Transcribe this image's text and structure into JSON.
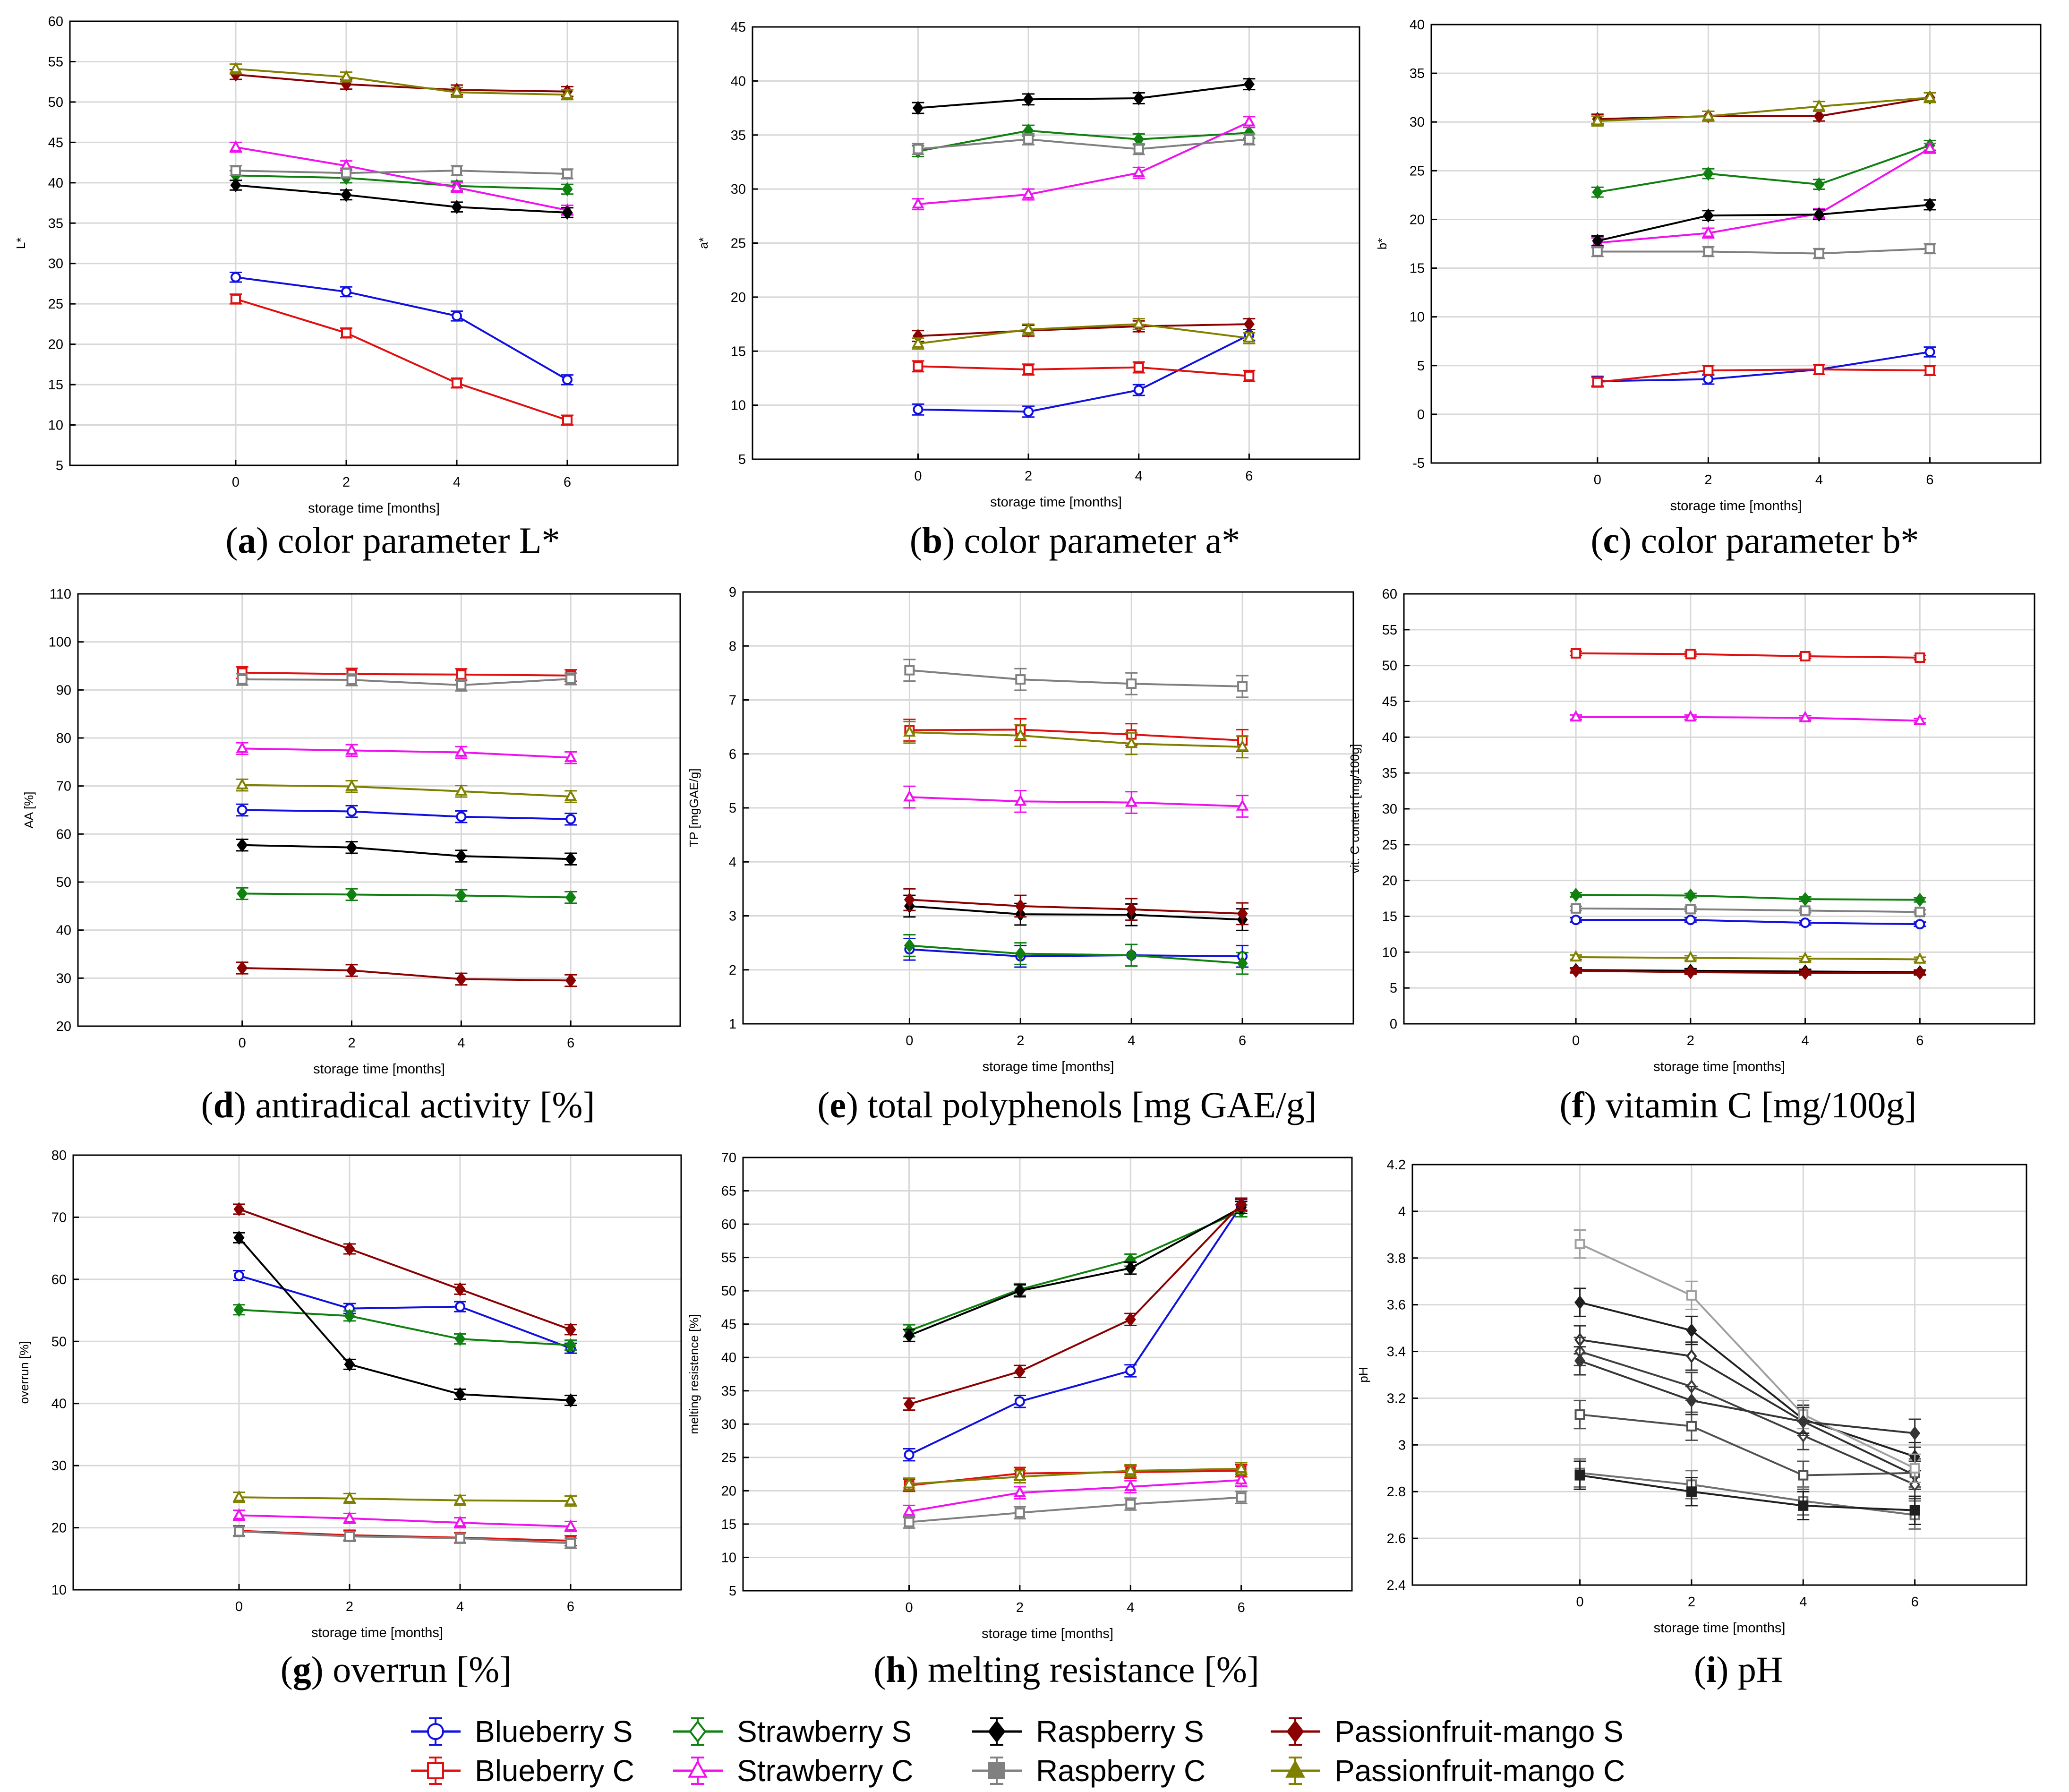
{
  "series_names": [
    "Blueberry S",
    "Blueberry C",
    "Strawberry S",
    "Strawberry C",
    "Raspberry S",
    "Raspberry C",
    "Passionfruit-mango S",
    "Passionfruit-mango C"
  ],
  "series_colors": [
    "#1010e0",
    "#e01010",
    "#108010",
    "#f010f0",
    "#000000",
    "#808080",
    "#8b0000",
    "#808000"
  ],
  "series_markers": [
    "circle",
    "square",
    "diamond",
    "triangle",
    "diamond",
    "square",
    "diamond",
    "triangle"
  ],
  "chart_data": [
    {
      "panel_id": "a",
      "type": "line",
      "caption_letter": "a",
      "caption_text": " color parameter L*",
      "xlabel": "storage time [months]",
      "ylabel": "L*",
      "x": [
        0,
        2,
        4,
        6
      ],
      "xlim": [
        -3,
        8
      ],
      "xticks": [
        0,
        2,
        4,
        6
      ],
      "ylim": [
        5,
        60
      ],
      "yticks": [
        5,
        10,
        15,
        20,
        25,
        30,
        35,
        40,
        45,
        50,
        55,
        60
      ],
      "series": [
        {
          "name": "Blueberry S",
          "values": [
            28.3,
            26.5,
            23.5,
            15.6
          ],
          "err": 0.6
        },
        {
          "name": "Blueberry C",
          "values": [
            25.6,
            21.4,
            15.2,
            10.6
          ],
          "err": 0.6
        },
        {
          "name": "Strawberry S",
          "values": [
            40.9,
            40.6,
            39.6,
            39.2
          ],
          "err": 0.6
        },
        {
          "name": "Strawberry C",
          "values": [
            44.4,
            42.1,
            39.4,
            36.6
          ],
          "err": 0.6
        },
        {
          "name": "Raspberry S",
          "values": [
            39.7,
            38.5,
            37.0,
            36.3
          ],
          "err": 0.6
        },
        {
          "name": "Raspberry C",
          "values": [
            41.5,
            41.2,
            41.5,
            41.1
          ],
          "err": 0.6
        },
        {
          "name": "Passionfruit-mango S",
          "values": [
            53.4,
            52.2,
            51.5,
            51.3
          ],
          "err": 0.6
        },
        {
          "name": "Passionfruit-mango C",
          "values": [
            54.1,
            53.1,
            51.2,
            50.9
          ],
          "err": 0.6
        }
      ]
    },
    {
      "panel_id": "b",
      "type": "line",
      "caption_letter": "b",
      "caption_text": " color parameter a*",
      "xlabel": "storage time [months]",
      "ylabel": "a*",
      "x": [
        0,
        2,
        4,
        6
      ],
      "xlim": [
        -3,
        8
      ],
      "xticks": [
        0,
        2,
        4,
        6
      ],
      "ylim": [
        5,
        45
      ],
      "yticks": [
        5,
        10,
        15,
        20,
        25,
        30,
        35,
        40,
        45
      ],
      "series": [
        {
          "name": "Blueberry S",
          "values": [
            9.6,
            9.4,
            11.4,
            16.5
          ],
          "err": 0.5
        },
        {
          "name": "Blueberry C",
          "values": [
            13.6,
            13.3,
            13.5,
            12.7
          ],
          "err": 0.5
        },
        {
          "name": "Strawberry S",
          "values": [
            33.5,
            35.4,
            34.6,
            35.2
          ],
          "err": 0.5
        },
        {
          "name": "Strawberry C",
          "values": [
            28.6,
            29.5,
            31.5,
            36.2
          ],
          "err": 0.5
        },
        {
          "name": "Raspberry S",
          "values": [
            37.5,
            38.3,
            38.4,
            39.7
          ],
          "err": 0.5
        },
        {
          "name": "Raspberry C",
          "values": [
            33.7,
            34.6,
            33.7,
            34.6
          ],
          "err": 0.5
        },
        {
          "name": "Passionfruit-mango S",
          "values": [
            16.4,
            16.9,
            17.3,
            17.5
          ],
          "err": 0.5
        },
        {
          "name": "Passionfruit-mango C",
          "values": [
            15.7,
            17.0,
            17.5,
            16.2
          ],
          "err": 0.5
        }
      ]
    },
    {
      "panel_id": "c",
      "type": "line",
      "caption_letter": "c",
      "caption_text": " color parameter b*",
      "xlabel": "storage time [months]",
      "ylabel": "b*",
      "x": [
        0,
        2,
        4,
        6
      ],
      "xlim": [
        -3,
        8
      ],
      "xticks": [
        0,
        2,
        4,
        6
      ],
      "ylim": [
        -5,
        40
      ],
      "yticks": [
        -5,
        0,
        5,
        10,
        15,
        20,
        25,
        30,
        35,
        40
      ],
      "series": [
        {
          "name": "Blueberry S",
          "values": [
            3.4,
            3.6,
            4.6,
            6.4
          ],
          "err": 0.5
        },
        {
          "name": "Blueberry C",
          "values": [
            3.3,
            4.5,
            4.6,
            4.5
          ],
          "err": 0.5
        },
        {
          "name": "Strawberry S",
          "values": [
            22.8,
            24.7,
            23.6,
            27.6
          ],
          "err": 0.5
        },
        {
          "name": "Strawberry C",
          "values": [
            17.6,
            18.6,
            20.6,
            27.3
          ],
          "err": 0.5
        },
        {
          "name": "Raspberry S",
          "values": [
            17.8,
            20.4,
            20.5,
            21.5
          ],
          "err": 0.5
        },
        {
          "name": "Raspberry C",
          "values": [
            16.7,
            16.7,
            16.5,
            17.0
          ],
          "err": 0.5
        },
        {
          "name": "Passionfruit-mango S",
          "values": [
            30.3,
            30.6,
            30.6,
            32.5
          ],
          "err": 0.5
        },
        {
          "name": "Passionfruit-mango C",
          "values": [
            30.1,
            30.6,
            31.6,
            32.5
          ],
          "err": 0.5
        }
      ]
    },
    {
      "panel_id": "d",
      "type": "line",
      "caption_letter": "d",
      "caption_text": " antiradical activity [%]",
      "xlabel": "storage time [months]",
      "ylabel": "AA [%]",
      "x": [
        0,
        2,
        4,
        6
      ],
      "xlim": [
        -3,
        8
      ],
      "xticks": [
        0,
        2,
        4,
        6
      ],
      "ylim": [
        20,
        110
      ],
      "yticks": [
        20,
        30,
        40,
        50,
        60,
        70,
        80,
        90,
        100,
        110
      ],
      "series": [
        {
          "name": "Blueberry S",
          "values": [
            65.0,
            64.7,
            63.6,
            63.1
          ],
          "err": 1.2
        },
        {
          "name": "Blueberry C",
          "values": [
            93.6,
            93.3,
            93.2,
            93.0
          ],
          "err": 1.2
        },
        {
          "name": "Strawberry S",
          "values": [
            47.6,
            47.4,
            47.2,
            46.8
          ],
          "err": 1.2
        },
        {
          "name": "Strawberry C",
          "values": [
            77.8,
            77.4,
            77.0,
            75.9
          ],
          "err": 1.2
        },
        {
          "name": "Raspberry S",
          "values": [
            57.7,
            57.2,
            55.4,
            54.8
          ],
          "err": 1.2
        },
        {
          "name": "Raspberry C",
          "values": [
            92.2,
            92.1,
            91.0,
            92.3
          ],
          "err": 1.2
        },
        {
          "name": "Passionfruit-mango S",
          "values": [
            32.1,
            31.6,
            29.8,
            29.5
          ],
          "err": 1.2
        },
        {
          "name": "Passionfruit-mango C",
          "values": [
            70.2,
            69.9,
            68.9,
            67.8
          ],
          "err": 1.2
        }
      ]
    },
    {
      "panel_id": "e",
      "type": "line",
      "caption_letter": "e",
      "caption_text": " total polyphenols [mg GAE/g]",
      "xlabel": "storage time [months]",
      "ylabel": "TP [mgGAE/g]",
      "x": [
        0,
        2,
        4,
        6
      ],
      "xlim": [
        -3,
        8
      ],
      "xticks": [
        0,
        2,
        4,
        6
      ],
      "ylim": [
        1,
        9
      ],
      "yticks": [
        1,
        2,
        3,
        4,
        5,
        6,
        7,
        8,
        9
      ],
      "series": [
        {
          "name": "Blueberry S",
          "values": [
            2.38,
            2.25,
            2.27,
            2.25
          ],
          "err": 0.2
        },
        {
          "name": "Blueberry C",
          "values": [
            6.44,
            6.45,
            6.36,
            6.25
          ],
          "err": 0.2
        },
        {
          "name": "Strawberry S",
          "values": [
            2.45,
            2.3,
            2.27,
            2.12
          ],
          "err": 0.2
        },
        {
          "name": "Strawberry C",
          "values": [
            5.2,
            5.12,
            5.1,
            5.03
          ],
          "err": 0.2
        },
        {
          "name": "Raspberry S",
          "values": [
            3.18,
            3.03,
            3.02,
            2.93
          ],
          "err": 0.2
        },
        {
          "name": "Raspberry C",
          "values": [
            7.55,
            7.38,
            7.3,
            7.25
          ],
          "err": 0.2
        },
        {
          "name": "Passionfruit-mango S",
          "values": [
            3.3,
            3.18,
            3.12,
            3.04
          ],
          "err": 0.2
        },
        {
          "name": "Passionfruit-mango C",
          "values": [
            6.4,
            6.34,
            6.19,
            6.13
          ],
          "err": 0.2
        }
      ]
    },
    {
      "panel_id": "f",
      "type": "line",
      "caption_letter": "f",
      "caption_text": " vitamin C [mg/100g]",
      "xlabel": "storage time [months]",
      "ylabel": "vit. C content [mg/100g]",
      "x": [
        0,
        2,
        4,
        6
      ],
      "xlim": [
        -3,
        8
      ],
      "xticks": [
        0,
        2,
        4,
        6
      ],
      "ylim": [
        0,
        60
      ],
      "yticks": [
        0,
        5,
        10,
        15,
        20,
        25,
        30,
        35,
        40,
        45,
        50,
        55,
        60
      ],
      "series": [
        {
          "name": "Blueberry S",
          "values": [
            14.5,
            14.5,
            14.1,
            13.9
          ],
          "err": 0.3
        },
        {
          "name": "Blueberry C",
          "values": [
            51.7,
            51.6,
            51.3,
            51.1
          ],
          "err": 0.3
        },
        {
          "name": "Strawberry S",
          "values": [
            18.0,
            17.9,
            17.4,
            17.3
          ],
          "err": 0.3
        },
        {
          "name": "Strawberry C",
          "values": [
            42.8,
            42.8,
            42.7,
            42.3
          ],
          "err": 0.3
        },
        {
          "name": "Raspberry S",
          "values": [
            7.5,
            7.4,
            7.3,
            7.2
          ],
          "err": 0.3
        },
        {
          "name": "Raspberry C",
          "values": [
            16.1,
            16.0,
            15.8,
            15.6
          ],
          "err": 0.3
        },
        {
          "name": "Passionfruit-mango S",
          "values": [
            7.4,
            7.2,
            7.1,
            7.1
          ],
          "err": 0.3
        },
        {
          "name": "Passionfruit-mango C",
          "values": [
            9.3,
            9.2,
            9.1,
            9.0
          ],
          "err": 0.3
        }
      ]
    },
    {
      "panel_id": "g",
      "type": "line",
      "caption_letter": "g",
      "caption_text": " overrun [%]",
      "xlabel": "storage time [months]",
      "ylabel": "overrun [%]",
      "x": [
        0,
        2,
        4,
        6
      ],
      "xlim": [
        -3,
        8
      ],
      "xticks": [
        0,
        2,
        4,
        6
      ],
      "ylim": [
        10,
        80
      ],
      "yticks": [
        10,
        20,
        30,
        40,
        50,
        60,
        70,
        80
      ],
      "series": [
        {
          "name": "Blueberry S",
          "values": [
            60.6,
            55.3,
            55.6,
            48.9
          ],
          "err": 0.8
        },
        {
          "name": "Blueberry C",
          "values": [
            19.5,
            18.8,
            18.4,
            17.9
          ],
          "err": 0.8
        },
        {
          "name": "Strawberry S",
          "values": [
            55.1,
            54.1,
            50.4,
            49.4
          ],
          "err": 0.8
        },
        {
          "name": "Strawberry C",
          "values": [
            22.0,
            21.5,
            20.8,
            20.2
          ],
          "err": 0.8
        },
        {
          "name": "Raspberry S",
          "values": [
            66.7,
            46.3,
            41.5,
            40.5
          ],
          "err": 0.8
        },
        {
          "name": "Raspberry C",
          "values": [
            19.4,
            18.6,
            18.3,
            17.5
          ],
          "err": 0.8
        },
        {
          "name": "Passionfruit-mango S",
          "values": [
            71.3,
            64.9,
            58.4,
            51.9
          ],
          "err": 0.8
        },
        {
          "name": "Passionfruit-mango C",
          "values": [
            24.9,
            24.7,
            24.4,
            24.3
          ],
          "err": 0.8
        }
      ]
    },
    {
      "panel_id": "h",
      "type": "line",
      "caption_letter": "h",
      "caption_text": " melting resistance [%]",
      "xlabel": "storage time [months]",
      "ylabel": "melting resistence [%]",
      "x": [
        0,
        2,
        4,
        6
      ],
      "xlim": [
        -3,
        8
      ],
      "xticks": [
        0,
        2,
        4,
        6
      ],
      "ylim": [
        5,
        70
      ],
      "yticks": [
        5,
        10,
        15,
        20,
        25,
        30,
        35,
        40,
        45,
        50,
        55,
        60,
        65,
        70
      ],
      "series": [
        {
          "name": "Blueberry S",
          "values": [
            25.4,
            33.4,
            38.0,
            62.8
          ],
          "err": 0.9
        },
        {
          "name": "Blueberry C",
          "values": [
            20.8,
            22.6,
            22.8,
            23.0
          ],
          "err": 0.9
        },
        {
          "name": "Strawberry S",
          "values": [
            44.0,
            50.2,
            54.6,
            62.0
          ],
          "err": 0.9
        },
        {
          "name": "Strawberry C",
          "values": [
            16.9,
            19.7,
            20.6,
            21.6
          ],
          "err": 0.9
        },
        {
          "name": "Raspberry S",
          "values": [
            43.3,
            50.0,
            53.4,
            62.5
          ],
          "err": 0.9
        },
        {
          "name": "Raspberry C",
          "values": [
            15.3,
            16.7,
            18.0,
            19.0
          ],
          "err": 0.9
        },
        {
          "name": "Passionfruit-mango S",
          "values": [
            33.0,
            37.9,
            45.7,
            63.0
          ],
          "err": 0.9
        },
        {
          "name": "Passionfruit-mango C",
          "values": [
            21.0,
            22.1,
            23.0,
            23.3
          ],
          "err": 0.9
        }
      ]
    },
    {
      "panel_id": "i",
      "type": "line",
      "caption_letter": "i",
      "caption_text": " pH",
      "grayscale": true,
      "xlabel": "storage time [months]",
      "ylabel": "pH",
      "x": [
        0,
        2,
        4,
        6
      ],
      "xlim": [
        -3,
        8
      ],
      "xticks": [
        0,
        2,
        4,
        6
      ],
      "ylim": [
        2.4,
        4.2
      ],
      "yticks": [
        2.4,
        2.6,
        2.8,
        3.0,
        3.2,
        3.4,
        3.6,
        3.8,
        4.0,
        4.2
      ],
      "ytick_labels": [
        "2.4",
        "2.6",
        "2.8",
        "3",
        "3.2",
        "3.4",
        "3.6",
        "3.8",
        "4",
        "4.2"
      ],
      "series": [
        {
          "name": "Blueberry S",
          "values": [
            3.45,
            3.38,
            3.1,
            2.87
          ],
          "err": 0.06
        },
        {
          "name": "Blueberry C",
          "values": [
            3.13,
            3.08,
            2.87,
            2.88
          ],
          "err": 0.06
        },
        {
          "name": "Strawberry S",
          "values": [
            3.4,
            3.25,
            3.04,
            2.83
          ],
          "err": 0.06
        },
        {
          "name": "Strawberry C",
          "values": [
            2.88,
            2.83,
            2.76,
            2.7
          ],
          "err": 0.06
        },
        {
          "name": "Raspberry S",
          "values": [
            3.61,
            3.49,
            3.11,
            2.95
          ],
          "err": 0.06
        },
        {
          "name": "Raspberry C",
          "values": [
            3.86,
            3.64,
            3.13,
            2.9
          ],
          "err": 0.06
        },
        {
          "name": "Passionfruit-mango S",
          "values": [
            3.36,
            3.19,
            3.1,
            3.05
          ],
          "err": 0.06
        },
        {
          "name": "Passionfruit-mango C",
          "values": [
            2.87,
            2.8,
            2.74,
            2.72
          ],
          "err": 0.06
        }
      ]
    }
  ]
}
